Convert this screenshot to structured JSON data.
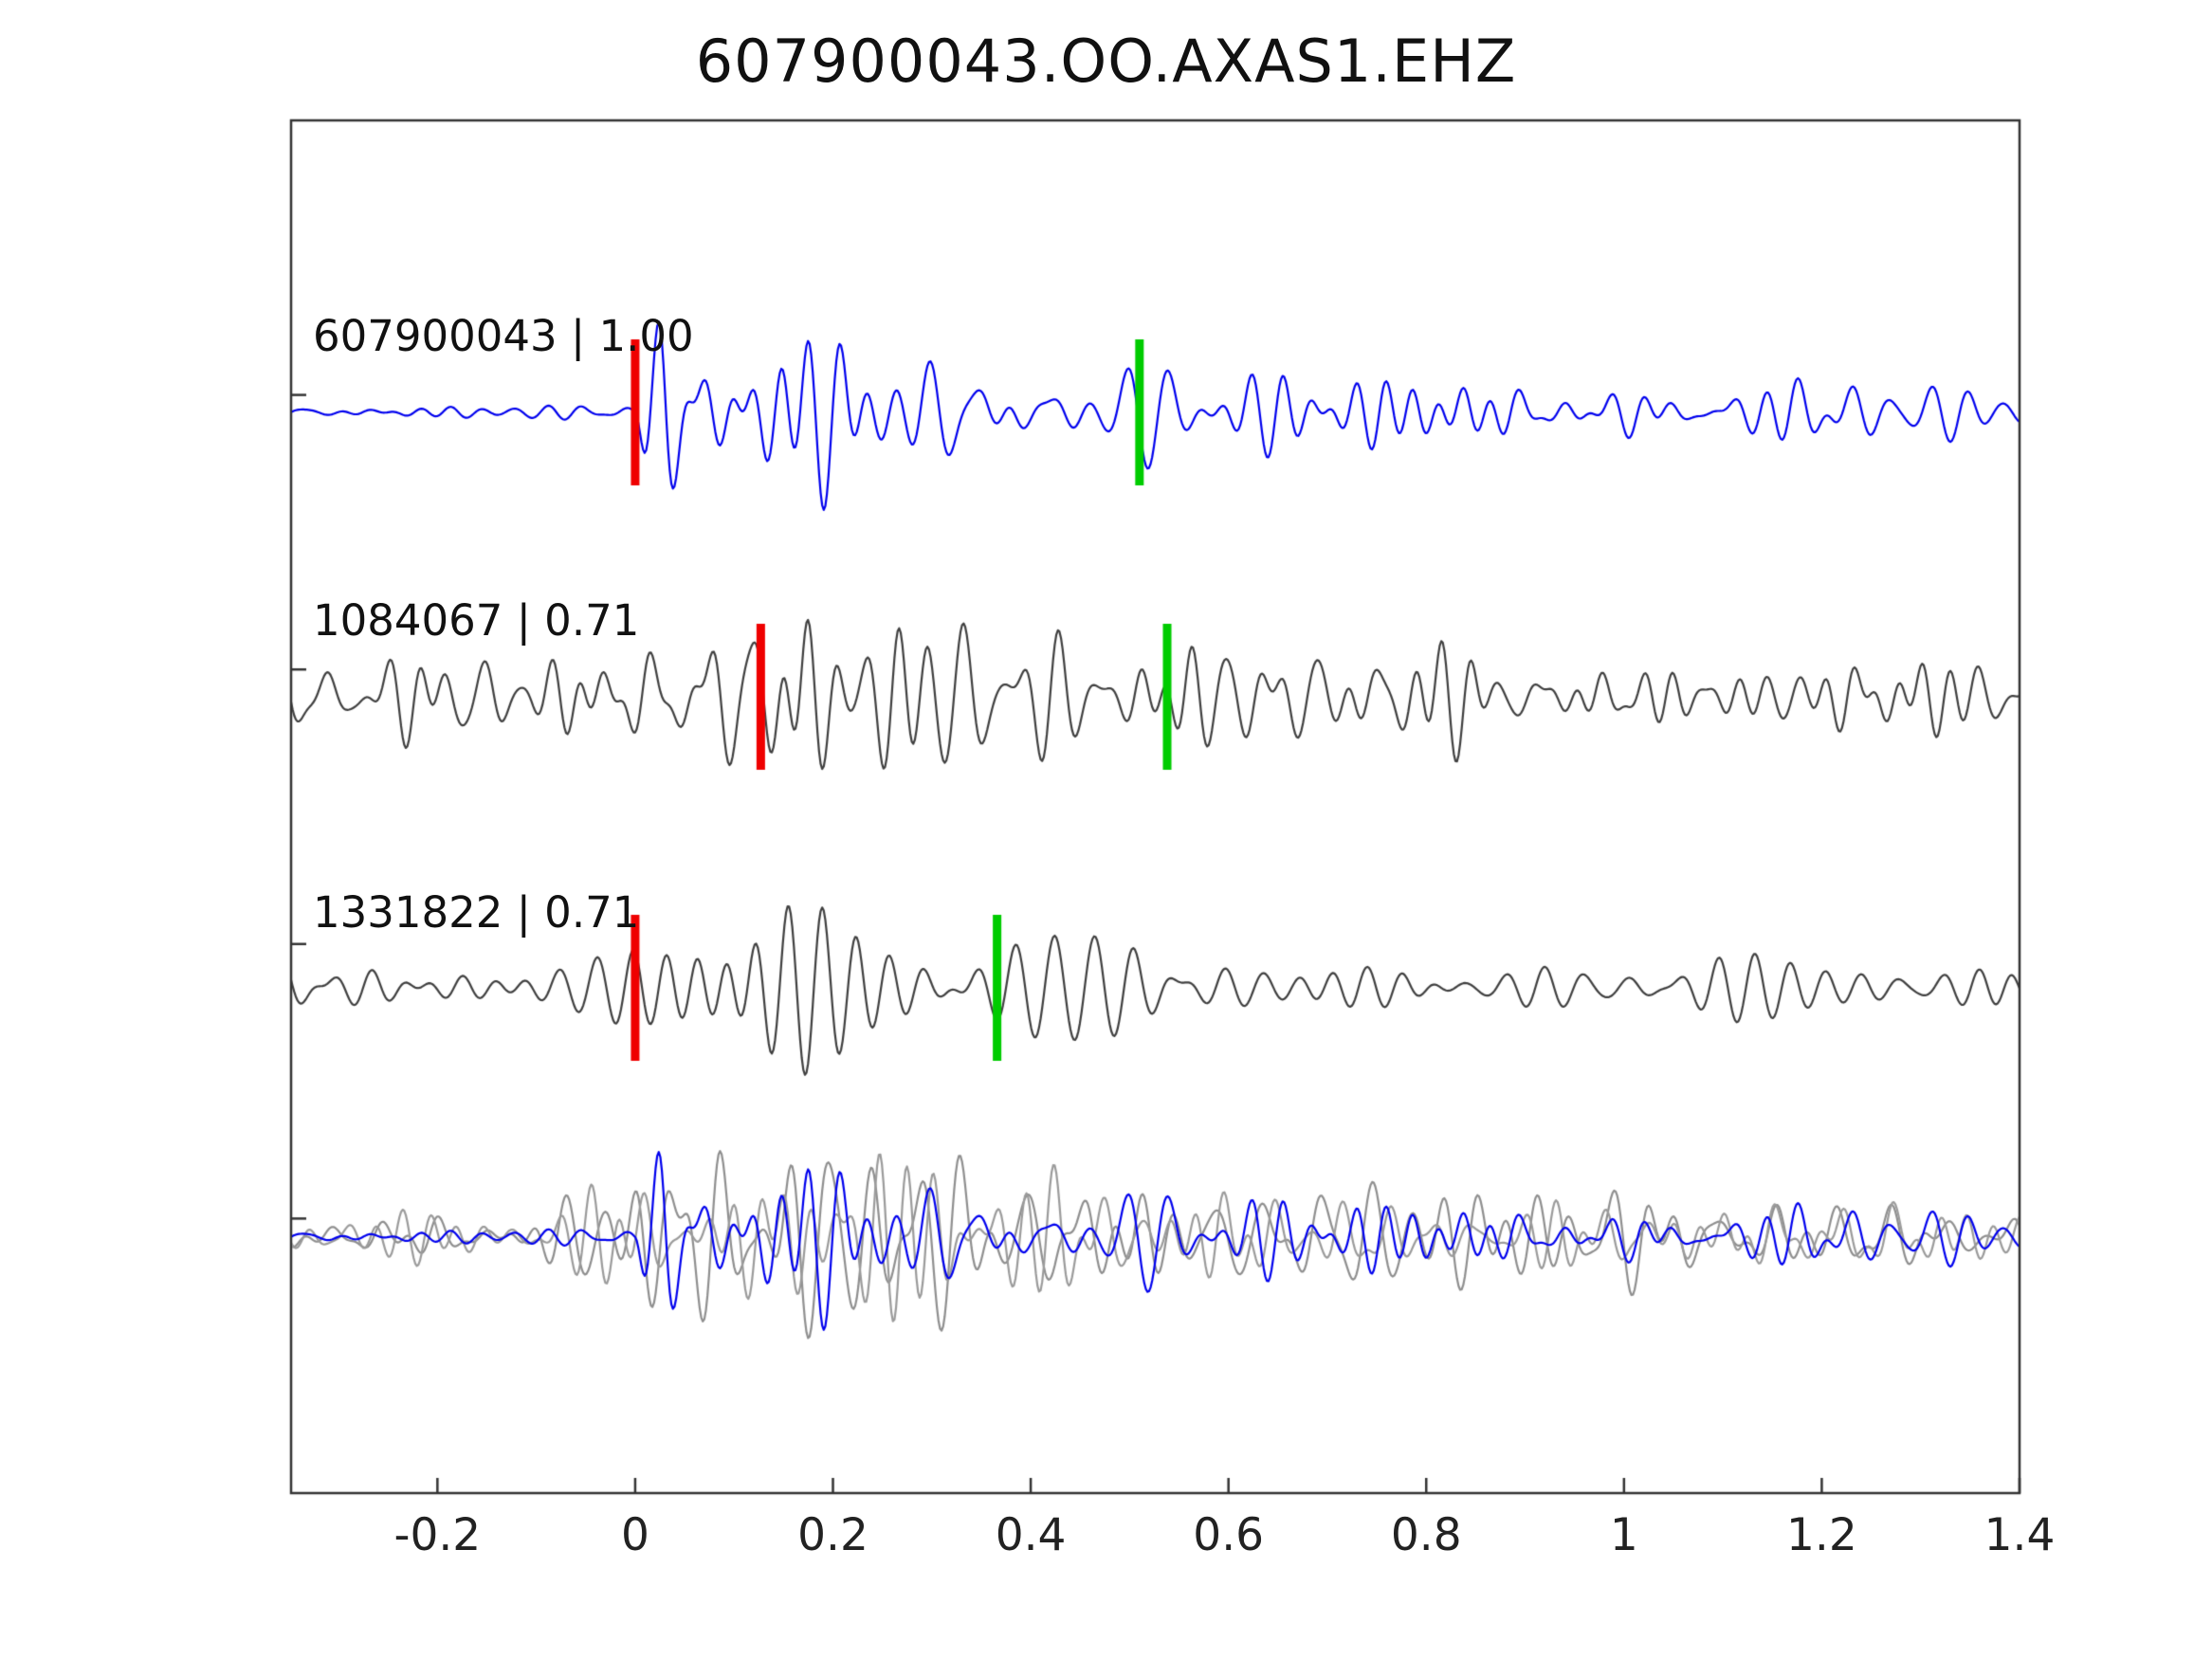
{
  "title": "607900043.OO.AXAS1.EHZ",
  "chart_data": {
    "type": "line",
    "subtype": "seismic-waveform-stack",
    "title": "607900043.OO.AXAS1.EHZ",
    "xlabel": "",
    "ylabel": "",
    "grid": false,
    "legend": "none",
    "xlim": [
      -0.348,
      1.4
    ],
    "xticks": [
      -0.2,
      0,
      0.2,
      0.4,
      0.6,
      0.8,
      1,
      1.2,
      1.4
    ],
    "xtick_labels": [
      "-0.2",
      "0",
      "0.2",
      "0.4",
      "0.6",
      "0.8",
      "1",
      "1.2",
      "1.4"
    ],
    "pick_marks": {
      "red_color": "#ef0000",
      "green_color": "#00cc00",
      "half_height": 77,
      "width": 9
    },
    "frame_color": "#333333",
    "traces": [
      {
        "id": "607900043",
        "label": "607900043 | 1.00",
        "similarity": 1.0,
        "kind": "template",
        "color": "#0000ee",
        "pick_red_x": 0.0,
        "pick_green_x": 0.51,
        "synth": {
          "seed": 11,
          "freq": [
            14,
            40
          ],
          "env": {
            "base": 6,
            "onset": 0,
            "rise": 0.03,
            "fast": [
              130,
              5
            ],
            "slow": [
              42,
              0.5
            ]
          }
        }
      },
      {
        "id": "1084067",
        "label": "1084067 | 0.71",
        "similarity": 0.71,
        "kind": "detection",
        "color": "#3f3f3f",
        "pick_red_x": 0.127,
        "pick_green_x": 0.538,
        "synth": {
          "seed": 23,
          "freq": [
            16,
            45
          ],
          "env": {
            "base": 38,
            "gauss": [
              [
                85,
                0.2,
                0.13
              ],
              [
                20,
                0.6,
                0.3
              ]
            ]
          }
        }
      },
      {
        "id": "1331822",
        "label": "1331822 | 0.71",
        "similarity": 0.71,
        "kind": "detection",
        "color": "#3f3f3f",
        "pick_red_x": 0.0,
        "pick_green_x": 0.366,
        "synth": {
          "seed": 37,
          "freq": [
            22,
            34
          ],
          "env": {
            "base": 32,
            "gauss": [
              [
                105,
                0.12,
                0.09
              ],
              [
                35,
                0.45,
                0.2
              ]
            ]
          }
        }
      }
    ],
    "overlay": {
      "description": "stacked comparison of detections (gray) with template (blue)",
      "components": [
        {
          "color": "#8f8f8f",
          "synth": {
            "seed": 71,
            "freq": [
              14,
              42
            ],
            "env": {
              "base": 28,
              "gauss": [
                [
                  95,
                  0.16,
                  0.13
                ],
                [
                  28,
                  0.6,
                  0.3
                ]
              ]
            }
          }
        },
        {
          "color": "#9b9b9b",
          "synth": {
            "seed": 72,
            "freq": [
              14,
              42
            ],
            "env": {
              "base": 26,
              "gauss": [
                [
                  90,
                  0.18,
                  0.14
                ],
                [
                  25,
                  0.65,
                  0.3
                ]
              ]
            }
          }
        },
        {
          "color": "#0000ee",
          "synth": {
            "seed": 11,
            "freq": [
              14,
              40
            ],
            "env": {
              "base": 7,
              "onset": 0,
              "rise": 0.03,
              "fast": [
                120,
                5
              ],
              "slow": [
                40,
                0.5
              ]
            }
          }
        }
      ]
    }
  }
}
